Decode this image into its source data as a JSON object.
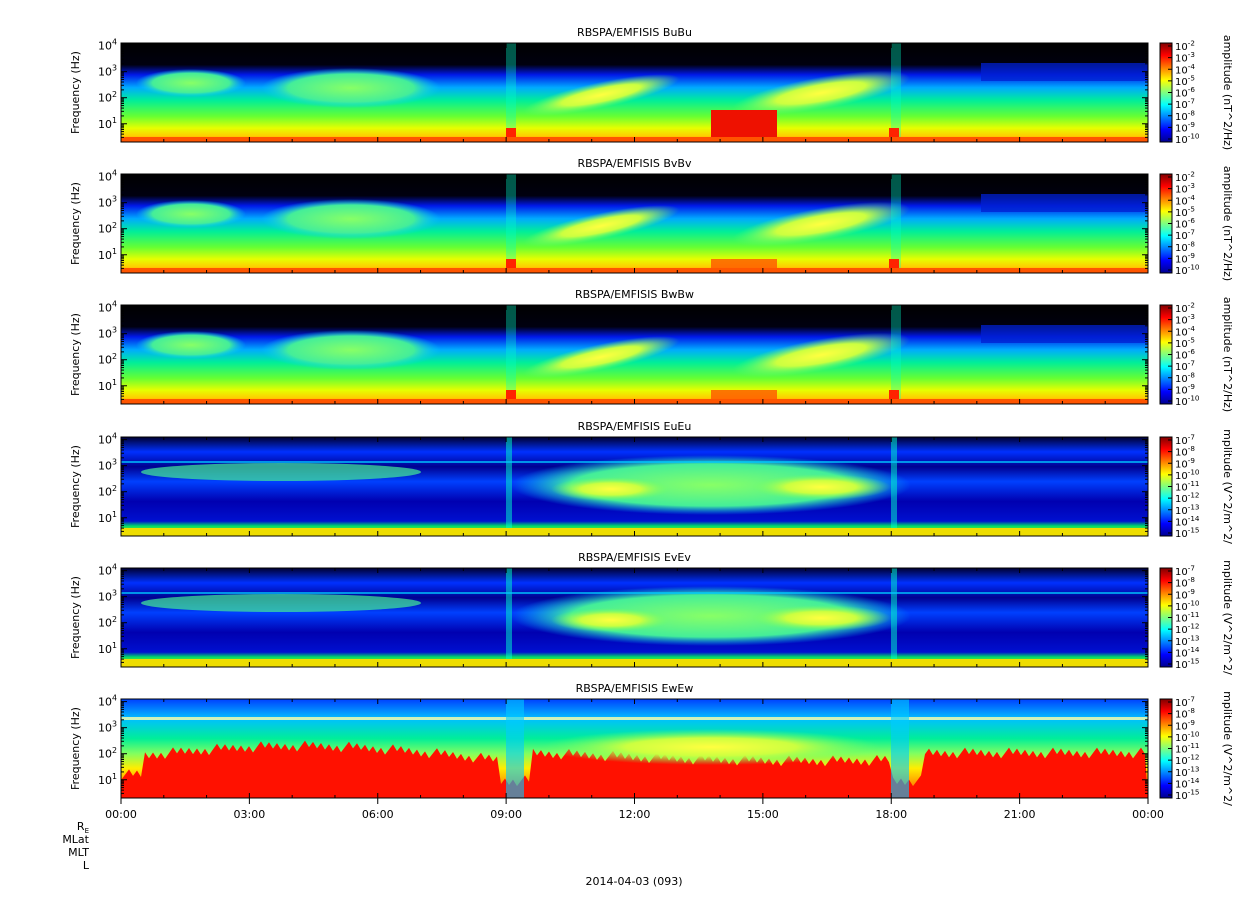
{
  "figure": {
    "date_label": "2014-04-03 (093)",
    "ephemeris_labels": [
      "RE",
      "MLat",
      "MLT",
      "L"
    ]
  },
  "chart_data": [
    {
      "type": "heatmap",
      "title": "RBSPA/EMFISIS  BuBu",
      "ylabel": "Frequency (Hz)",
      "yscale": "log",
      "yticks": [
        "10^1",
        "10^2",
        "10^3",
        "10^4"
      ],
      "colorbar_label": "amplitude (nT^2/Hz)",
      "colorbar_ticks": [
        "10^-2",
        "10^-3",
        "10^-4",
        "10^-5",
        "10^-6",
        "10^-7",
        "10^-8",
        "10^-9",
        "10^-10"
      ],
      "colorbar_range": [
        -10,
        -2
      ]
    },
    {
      "type": "heatmap",
      "title": "RBSPA/EMFISIS  BvBv",
      "ylabel": "Frequency (Hz)",
      "yscale": "log",
      "yticks": [
        "10^1",
        "10^2",
        "10^3",
        "10^4"
      ],
      "colorbar_label": "amplitude (nT^2/Hz)",
      "colorbar_ticks": [
        "10^-2",
        "10^-3",
        "10^-4",
        "10^-5",
        "10^-6",
        "10^-7",
        "10^-8",
        "10^-9",
        "10^-10"
      ],
      "colorbar_range": [
        -10,
        -2
      ]
    },
    {
      "type": "heatmap",
      "title": "RBSPA/EMFISIS  BwBw",
      "ylabel": "Frequency (Hz)",
      "yscale": "log",
      "yticks": [
        "10^1",
        "10^2",
        "10^3",
        "10^4"
      ],
      "colorbar_label": "amplitude (nT^2/Hz)",
      "colorbar_ticks": [
        "10^-2",
        "10^-3",
        "10^-4",
        "10^-5",
        "10^-6",
        "10^-7",
        "10^-8",
        "10^-9",
        "10^-10"
      ],
      "colorbar_range": [
        -10,
        -2
      ]
    },
    {
      "type": "heatmap",
      "title": "RBSPA/EMFISIS  EuEu",
      "ylabel": "Frequency (Hz)",
      "yscale": "log",
      "yticks": [
        "10^1",
        "10^2",
        "10^3",
        "10^4"
      ],
      "colorbar_label": "mplitude (V^2/m^2/",
      "colorbar_ticks": [
        "10^-7",
        "10^-8",
        "10^-9",
        "10^-10",
        "10^-11",
        "10^-12",
        "10^-13",
        "10^-14",
        "10^-15"
      ],
      "colorbar_range": [
        -15,
        -7
      ]
    },
    {
      "type": "heatmap",
      "title": "RBSPA/EMFISIS  EvEv",
      "ylabel": "Frequency (Hz)",
      "yscale": "log",
      "yticks": [
        "10^1",
        "10^2",
        "10^3",
        "10^4"
      ],
      "colorbar_label": "mplitude (V^2/m^2/",
      "colorbar_ticks": [
        "10^-7",
        "10^-8",
        "10^-9",
        "10^-10",
        "10^-11",
        "10^-12",
        "10^-13",
        "10^-14",
        "10^-15"
      ],
      "colorbar_range": [
        -15,
        -7
      ]
    },
    {
      "type": "heatmap",
      "title": "RBSPA/EMFISIS  EwEw",
      "ylabel": "Frequency (Hz)",
      "yscale": "log",
      "yticks": [
        "10^1",
        "10^2",
        "10^3",
        "10^4"
      ],
      "colorbar_label": "mplitude (V^2/m^2/",
      "colorbar_ticks": [
        "10^-7",
        "10^-8",
        "10^-9",
        "10^-10",
        "10^-11",
        "10^-12",
        "10^-13",
        "10^-14",
        "10^-15"
      ],
      "colorbar_range": [
        -15,
        -7
      ]
    }
  ],
  "x_axis": {
    "ticks": [
      "00:00",
      "03:00",
      "06:00",
      "09:00",
      "12:00",
      "15:00",
      "18:00",
      "21:00",
      "00:00"
    ]
  }
}
